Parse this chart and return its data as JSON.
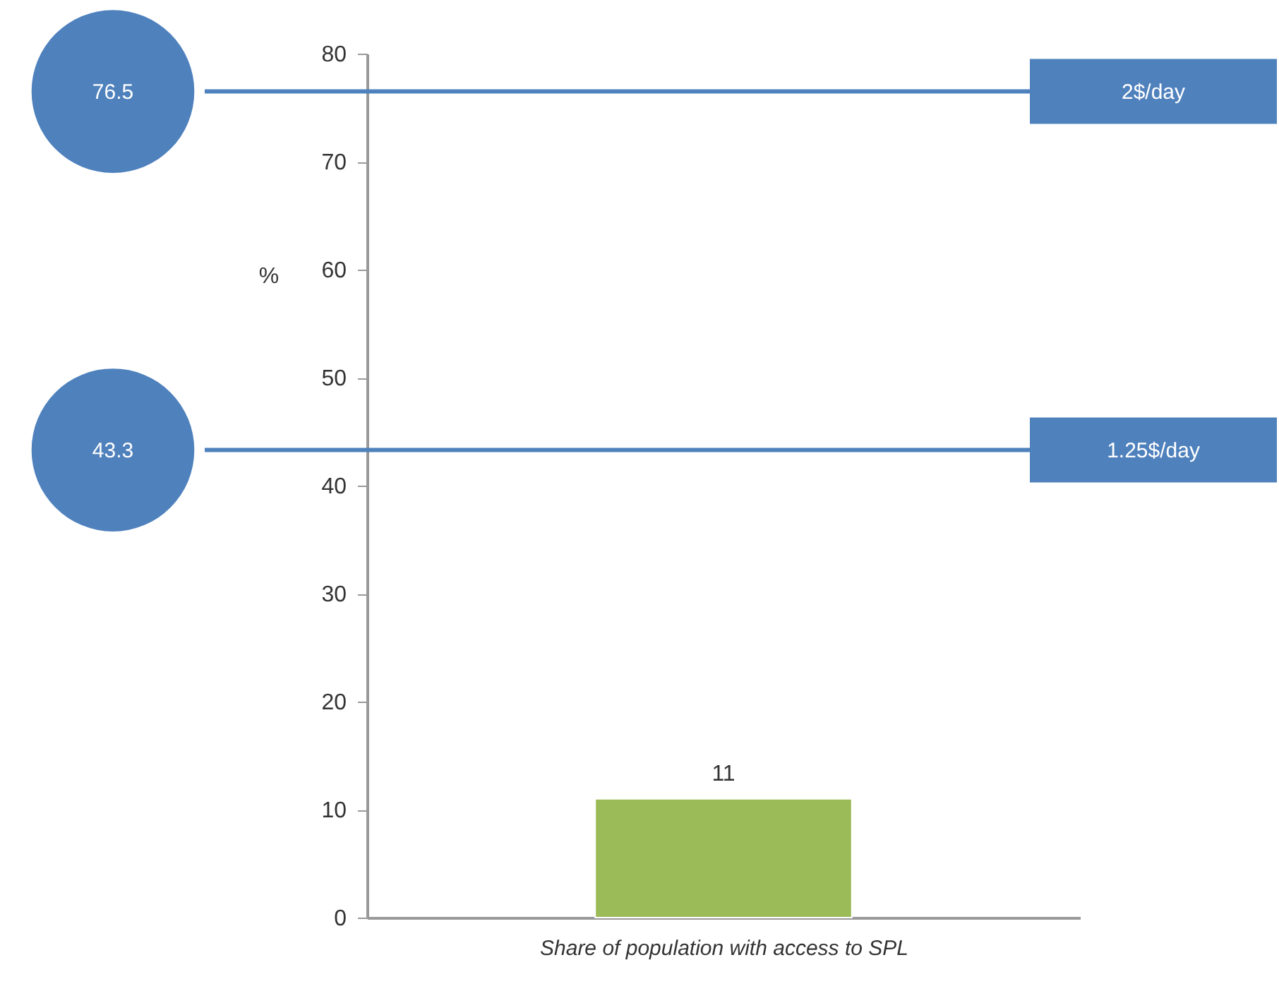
{
  "chart_data": {
    "type": "bar",
    "xlabel": "Share of population with access to SPL",
    "ylabel": "%",
    "categories": [
      null
    ],
    "values": [
      11
    ],
    "color": "#9bbb59",
    "data_labels": true,
    "ylim": [
      0,
      80
    ],
    "yticks": [
      0,
      10,
      20,
      30,
      40,
      50,
      60,
      70,
      80
    ],
    "grid": false,
    "ref_lines": [
      {
        "axis": "y",
        "value": 76.5,
        "label": "2$/day",
        "color": "#4f81bd"
      },
      {
        "axis": "y",
        "value": 43.3,
        "label": "1.25$/day",
        "color": "#4f81bd"
      }
    ],
    "annotations": [
      "76.5",
      "43.3"
    ]
  }
}
